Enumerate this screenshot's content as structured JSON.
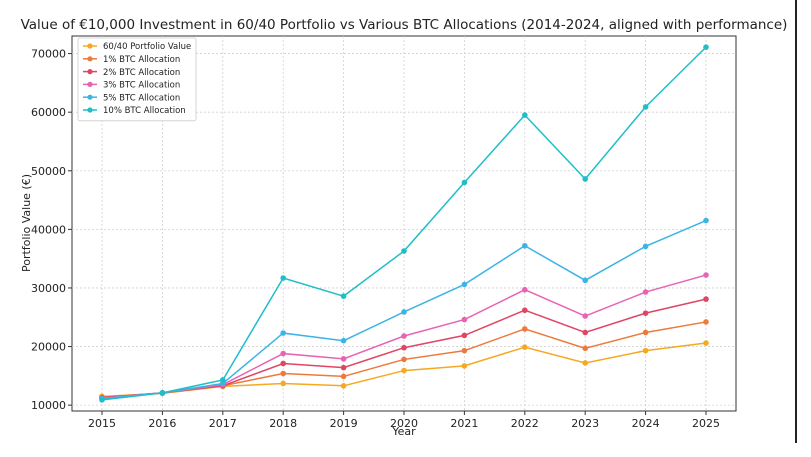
{
  "chart_data": {
    "type": "line",
    "title": "Value of €10,000 Investment in 60/40 Portfolio vs Various BTC Allocations (2014-2024, aligned with performance)",
    "xlabel": "Year",
    "ylabel": "Portfolio Value (€)",
    "categories": [
      "2015",
      "2016",
      "2017",
      "2018",
      "2019",
      "2020",
      "2021",
      "2022",
      "2023",
      "2024",
      "2025"
    ],
    "ylim": [
      9000,
      73000
    ],
    "yticks": [
      10000,
      20000,
      30000,
      40000,
      50000,
      60000,
      70000
    ],
    "ytick_labels": [
      "10000",
      "20000",
      "30000",
      "40000",
      "50000",
      "60000",
      "70000"
    ],
    "grid": true,
    "legend_position": "top-left",
    "series": [
      {
        "name": "60/40 Portfolio Value",
        "color": "#f6a821",
        "values": [
          11500,
          12000,
          13200,
          13700,
          13300,
          15900,
          16700,
          19900,
          17200,
          19300,
          20600
        ]
      },
      {
        "name": "1% BTC Allocation",
        "color": "#ec7a3c",
        "values": [
          11300,
          12100,
          13300,
          15400,
          14900,
          17800,
          19300,
          23000,
          19700,
          22400,
          24200
        ]
      },
      {
        "name": "2% BTC Allocation",
        "color": "#e04562",
        "values": [
          11300,
          12100,
          13300,
          17100,
          16400,
          19800,
          21900,
          26200,
          22400,
          25700,
          28100
        ]
      },
      {
        "name": "3% BTC Allocation",
        "color": "#e763b3",
        "values": [
          11200,
          12100,
          13500,
          18800,
          17900,
          21800,
          24600,
          29700,
          25200,
          29300,
          32200
        ]
      },
      {
        "name": "5% BTC Allocation",
        "color": "#3cb4e6",
        "values": [
          11100,
          12100,
          13700,
          22300,
          21000,
          25900,
          30600,
          37200,
          31300,
          37100,
          41500
        ]
      },
      {
        "name": "10% BTC Allocation",
        "color": "#1ebfc9",
        "values": [
          10900,
          12100,
          14300,
          31700,
          28600,
          36300,
          48000,
          59500,
          48600,
          60900,
          71100
        ]
      }
    ]
  }
}
